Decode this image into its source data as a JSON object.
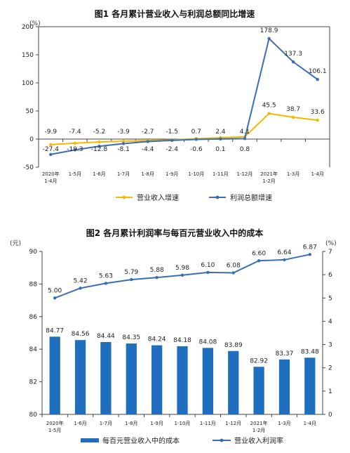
{
  "chart_data": [
    {
      "type": "line",
      "title": "图1  各月累计营业收入与利润总额同比增速",
      "y_unit": "(%)",
      "categories": [
        [
          "2020年",
          "1-4月"
        ],
        [
          "1-5月"
        ],
        [
          "1-6月"
        ],
        [
          "1-7月"
        ],
        [
          "1-8月"
        ],
        [
          "1-9月"
        ],
        [
          "1-10月"
        ],
        [
          "1-11月"
        ],
        [
          "1-12月"
        ],
        [
          "2021年",
          "1-2月"
        ],
        [
          "1-3月"
        ],
        [
          "1-4月"
        ]
      ],
      "ylim": [
        -50,
        200
      ],
      "yticks": [
        -50,
        0,
        50,
        100,
        150,
        200
      ],
      "series": [
        {
          "name": "营业收入增速",
          "color": "#f5b800",
          "values": [
            -9.9,
            -7.4,
            -5.2,
            -3.9,
            -2.7,
            -1.5,
            0.7,
            2.4,
            4.1,
            45.5,
            38.7,
            33.6
          ],
          "labels": [
            "-9.9",
            "-7.4",
            "-5.2",
            "-3.9",
            "-2.7",
            "-1.5",
            "0.7",
            "2.4",
            "4.1",
            "45.5",
            "38.7",
            "33.6"
          ]
        },
        {
          "name": "利润总额增速",
          "color": "#3a6eb4",
          "values": [
            -27.4,
            -19.3,
            -12.8,
            -8.1,
            -4.4,
            -2.4,
            -0.6,
            0.1,
            0.8,
            178.9,
            137.3,
            106.1
          ],
          "labels": [
            "-27.4",
            "-19.3",
            "-12.8",
            "-8.1",
            "-4.4",
            "-2.4",
            "-0.6",
            "0.1",
            "0.8",
            "178.9",
            "137.3",
            "106.1"
          ]
        }
      ],
      "legend": "bottom",
      "grid": false
    },
    {
      "type": "bar+line",
      "title": "图2  各月累计利润率与每百元营业收入中的成本",
      "y_left_unit": "(元)",
      "y_right_unit": "(%)",
      "categories": [
        [
          "2020年",
          "1-5月"
        ],
        [
          "1-6月"
        ],
        [
          "1-7月"
        ],
        [
          "1-8月"
        ],
        [
          "1-9月"
        ],
        [
          "1-10月"
        ],
        [
          "1-11月"
        ],
        [
          "1-12月"
        ],
        [
          "2021年",
          "1-2月"
        ],
        [
          "1-3月"
        ],
        [
          "1-4月"
        ]
      ],
      "ylim_left": [
        80,
        90
      ],
      "yticks_left": [
        80,
        82,
        84,
        86,
        88,
        90
      ],
      "ylim_right": [
        0,
        7
      ],
      "yticks_right": [
        0,
        1,
        2,
        3,
        4,
        5,
        6,
        7
      ],
      "bars": {
        "name": "每百元营业收入中的成本",
        "color": "#1f6fbe",
        "values": [
          84.77,
          84.56,
          84.44,
          84.35,
          84.24,
          84.18,
          84.08,
          83.89,
          82.92,
          83.37,
          83.48
        ],
        "labels": [
          "84.77",
          "84.56",
          "84.44",
          "84.35",
          "84.24",
          "84.18",
          "84.08",
          "83.89",
          "82.92",
          "83.37",
          "83.48"
        ]
      },
      "line": {
        "name": "营业收入利润率",
        "color": "#3a6eb4",
        "values": [
          5.0,
          5.42,
          5.63,
          5.79,
          5.88,
          5.98,
          6.1,
          6.08,
          6.6,
          6.64,
          6.87
        ],
        "labels": [
          "5.00",
          "5.42",
          "5.63",
          "5.79",
          "5.88",
          "5.98",
          "6.10",
          "6.08",
          "6.60",
          "6.64",
          "6.87"
        ]
      },
      "legend": "bottom",
      "grid": false
    }
  ]
}
